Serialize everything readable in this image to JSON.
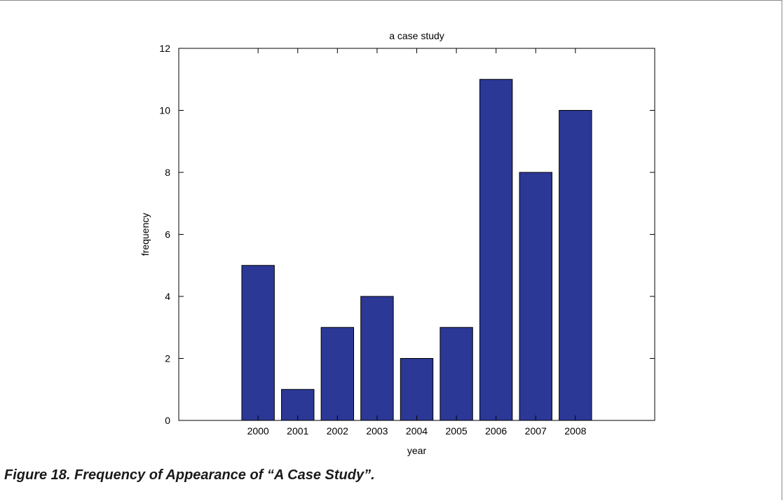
{
  "caption": "Figure 18. Frequency of Appearance of “A Case Study”.",
  "chart_data": {
    "type": "bar",
    "title": "a case study",
    "xlabel": "year",
    "ylabel": "frequency",
    "categories": [
      "2000",
      "2001",
      "2002",
      "2003",
      "2004",
      "2005",
      "2006",
      "2007",
      "2008"
    ],
    "values": [
      5,
      1,
      3,
      4,
      2,
      3,
      11,
      8,
      10
    ],
    "ylim": [
      0,
      12
    ],
    "yticks": [
      0,
      2,
      4,
      6,
      8,
      10,
      12
    ],
    "grid": false,
    "legend": "none",
    "bar_color": "#2b3896"
  }
}
